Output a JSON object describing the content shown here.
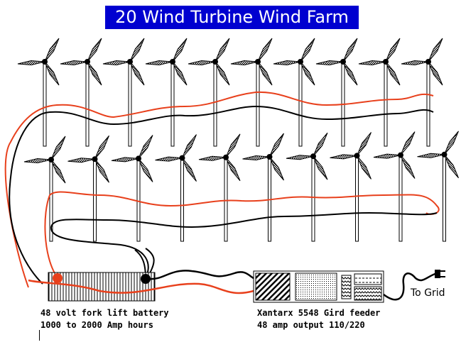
{
  "title": "20 Wind Turbine Wind Farm",
  "battery": {
    "line1": "48 volt fork lift battery",
    "line2": "1000 to 2000 Amp hours"
  },
  "inverter": {
    "line1": "Xantarx 5548 Gird feeder",
    "line2": "48 amp output 110/220"
  },
  "grid_label": "To Grid",
  "colors": {
    "title_bg": "#0000d0",
    "positive_wire": "#e8401c",
    "negative_wire": "#000000"
  },
  "turbine_rows": [
    10,
    10
  ]
}
